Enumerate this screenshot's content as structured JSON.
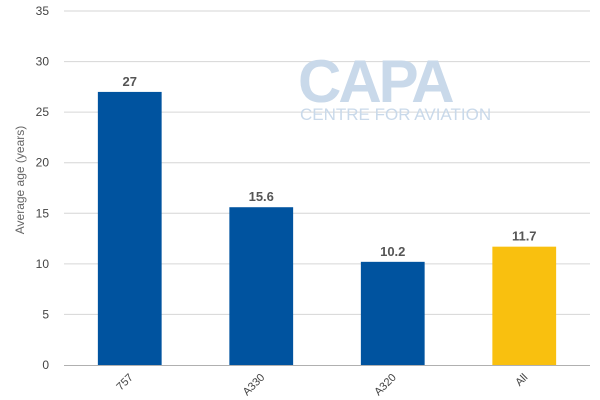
{
  "watermark": {
    "brand": "CAPA",
    "tagline": "CENTRE FOR AVIATION"
  },
  "chart_data": {
    "type": "bar",
    "title": "",
    "xlabel": "",
    "ylabel": "Average age (years)",
    "ylim": [
      0,
      35
    ],
    "yticks": [
      "0",
      "5",
      "10",
      "15",
      "20",
      "25",
      "30",
      "35"
    ],
    "grid": true,
    "categories": [
      "757",
      "A330",
      "A320",
      "All"
    ],
    "values": [
      27,
      15.6,
      10.2,
      11.7
    ],
    "value_labels": [
      "27",
      "15.6",
      "10.2",
      "11.7"
    ],
    "bar_colors": [
      "#00539f",
      "#00539f",
      "#00539f",
      "#f9c00f"
    ]
  }
}
